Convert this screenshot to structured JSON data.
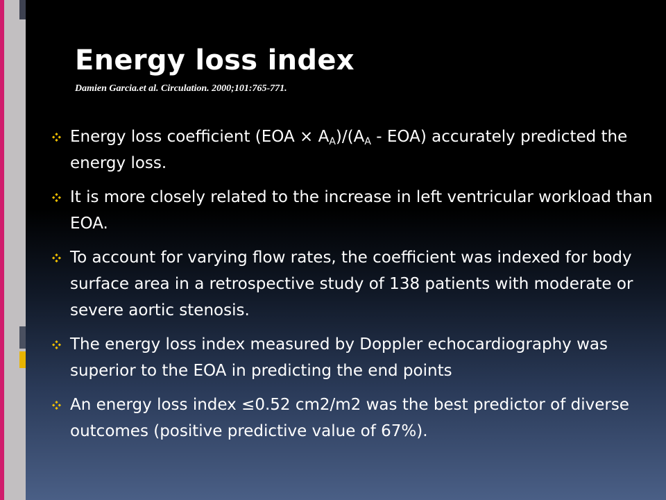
{
  "slide": {
    "title": "Energy loss index",
    "citation": "Damien Garcia.et al. Circulation. 2000;101:765-771.",
    "bullets": [
      {
        "text_before": "Energy loss  coefficient (EOA × A",
        "sub1": "A",
        "text_middle": ")/(A",
        "sub2": "A",
        "text_after": " - EOA)  accurately predicted the energy loss."
      },
      {
        "text": "It is more closely related to the increase in left ventricular workload than EOA."
      },
      {
        "text": "To account for varying flow rates, the coefficient was indexed for body surface area in a retrospective study of 138 patients with moderate or severe aortic stenosis."
      },
      {
        "text": "The energy loss index measured by Doppler echocardiography was superior to the EOA in predicting the end points"
      },
      {
        "text": " An energy loss index  ≤0.52 cm2/m2 was the best predictor of diverse outcomes (positive predictive value of 67%)."
      }
    ],
    "bullet_icon": "four-diamond-bullet-icon",
    "colors": {
      "text": "#ffffff",
      "bullet": "#f0c000",
      "stripe_red": "#d01c6c",
      "stripe_gray": "#c9c5c7",
      "accent_dark": "#4a5060",
      "accent_yellow": "#e8b400"
    }
  }
}
